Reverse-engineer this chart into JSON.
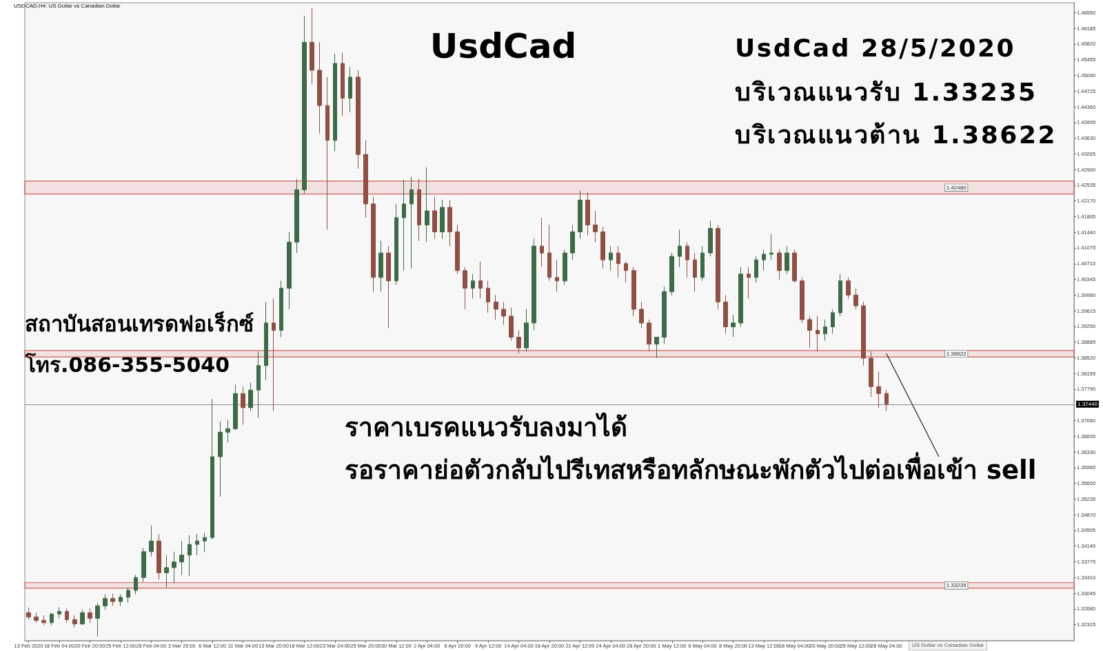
{
  "chart_data": {
    "type": "candlestick",
    "title": "UsdCad",
    "annotations": [
      "USDCAD,H4: US Dollar vs Canadian Dollar",
      "UsdCad 28/5/2020",
      "บริเวณแนวรับ 1.33235",
      "บริเวณแนวต้าน 1.38622",
      "ราคาเบรคแนวรับลงมาได้",
      {
        "text": "รอราคาย่อตัวกลับไปรีเทสหรือทลักษณะพักตัวไปต่อเพื่อเข้า sell",
        "x": "28 May 04:00",
        "y": 1.3862
      },
      "สถาบันสอนเทรดฟอเร็กซ์",
      "โทร.086-355-5040",
      "US Dollar vs Canadian Dollar"
    ],
    "categories": [
      "13 Feb 2020",
      null,
      null,
      null,
      "18 Feb 04:00",
      null,
      null,
      null,
      "20 Feb 20:00",
      null,
      null,
      null,
      "25 Feb 12:00",
      null,
      null,
      null,
      "28 Feb 04:00",
      null,
      null,
      null,
      "3 Mar 20:00",
      null,
      null,
      null,
      "6 Mar 12:00",
      null,
      null,
      null,
      "11 Mar 04:00",
      null,
      null,
      null,
      "13 Mar 20:00",
      null,
      null,
      null,
      "18 Mar 12:00",
      null,
      null,
      null,
      "23 Mar 04:00",
      null,
      null,
      null,
      "25 Mar 20:00",
      null,
      null,
      null,
      "30 Mar 12:00",
      null,
      null,
      null,
      "2 Apr 04:00",
      null,
      null,
      null,
      "6 Apr 20:00",
      null,
      null,
      null,
      "9 Apr 12:00",
      null,
      null,
      null,
      "14 Apr 04:00",
      null,
      null,
      null,
      "16 Apr 20:00",
      null,
      null,
      null,
      "21 Apr 12:00",
      null,
      null,
      null,
      "24 Apr 04:00",
      null,
      null,
      null,
      "28 Apr 20:00",
      null,
      null,
      null,
      "1 May 12:00",
      null,
      null,
      null,
      "6 May 04:00",
      null,
      null,
      null,
      "8 May 20:00",
      null,
      null,
      null,
      "13 May 12:00",
      null,
      null,
      null,
      "18 May 04:00",
      null,
      null,
      null,
      "20 May 20:00",
      null,
      null,
      null,
      "25 May 12:00",
      null,
      null,
      null,
      "28 May 04:00",
      null,
      null,
      null,
      null,
      null,
      null,
      null,
      null,
      null,
      null,
      null,
      null,
      null,
      null,
      null,
      null,
      null,
      null,
      null,
      null,
      null,
      null,
      null,
      null
    ],
    "ohlc": [
      [
        1.3259,
        1.3271,
        1.3243,
        1.3249
      ],
      [
        1.3249,
        1.3259,
        1.3236,
        1.3241
      ],
      [
        1.3241,
        1.3253,
        1.323,
        1.3236
      ],
      [
        1.3236,
        1.3259,
        1.323,
        1.3256
      ],
      [
        1.3256,
        1.3272,
        1.3246,
        1.3262
      ],
      [
        1.3262,
        1.3269,
        1.3236,
        1.3243
      ],
      [
        1.3243,
        1.3253,
        1.3225,
        1.3233
      ],
      [
        1.3233,
        1.3266,
        1.323,
        1.3259
      ],
      [
        1.3259,
        1.3269,
        1.3236,
        1.3246
      ],
      [
        1.3246,
        1.3282,
        1.3204,
        1.3275
      ],
      [
        1.3275,
        1.3302,
        1.3266,
        1.3292
      ],
      [
        1.3292,
        1.3303,
        1.3275,
        1.3285
      ],
      [
        1.3285,
        1.3302,
        1.3275,
        1.3295
      ],
      [
        1.3295,
        1.3318,
        1.3282,
        1.3311
      ],
      [
        1.3311,
        1.3347,
        1.3302,
        1.3341
      ],
      [
        1.3341,
        1.341,
        1.3331,
        1.3401
      ],
      [
        1.3401,
        1.3462,
        1.339,
        1.3426
      ],
      [
        1.3426,
        1.3442,
        1.3336,
        1.3352
      ],
      [
        1.3352,
        1.3393,
        1.3318,
        1.3364
      ],
      [
        1.3364,
        1.3401,
        1.3328,
        1.3377
      ],
      [
        1.3377,
        1.3426,
        1.3347,
        1.3393
      ],
      [
        1.3393,
        1.3439,
        1.3344,
        1.3418
      ],
      [
        1.3418,
        1.3442,
        1.3393,
        1.3426
      ],
      [
        1.3426,
        1.3445,
        1.34,
        1.3434
      ],
      [
        1.3434,
        1.3756,
        1.3429,
        1.3622
      ],
      [
        1.3622,
        1.3704,
        1.3529,
        1.3679
      ],
      [
        1.3679,
        1.3707,
        1.3655,
        1.3687
      ],
      [
        1.3687,
        1.3789,
        1.3684,
        1.3769
      ],
      [
        1.3769,
        1.3785,
        1.3696,
        1.3736
      ],
      [
        1.3736,
        1.3794,
        1.3728,
        1.3777
      ],
      [
        1.3777,
        1.3867,
        1.3712,
        1.3834
      ],
      [
        1.3834,
        1.3982,
        1.38,
        1.3933
      ],
      [
        1.3933,
        1.399,
        1.3728,
        1.3916
      ],
      [
        1.3916,
        1.4031,
        1.39,
        1.4014
      ],
      [
        1.4014,
        1.4145,
        1.3965,
        1.4121
      ],
      [
        1.4121,
        1.4268,
        1.4096,
        1.4243
      ],
      [
        1.4243,
        1.4647,
        1.4235,
        1.4586
      ],
      [
        1.4586,
        1.4666,
        1.4488,
        1.4521
      ],
      [
        1.4521,
        1.4586,
        1.4374,
        1.4439
      ],
      [
        1.4439,
        1.4505,
        1.415,
        1.4358
      ],
      [
        1.4358,
        1.4559,
        1.4333,
        1.4537
      ],
      [
        1.4537,
        1.4562,
        1.4415,
        1.4456
      ],
      [
        1.4456,
        1.4529,
        1.4423,
        1.4505
      ],
      [
        1.4505,
        1.4521,
        1.4292,
        1.4325
      ],
      [
        1.4325,
        1.4358,
        1.4178,
        1.421
      ],
      [
        1.421,
        1.4227,
        1.4006,
        1.4039
      ],
      [
        1.4039,
        1.4124,
        1.4006,
        1.4096
      ],
      [
        1.4096,
        1.4112,
        1.3921,
        1.4031
      ],
      [
        1.4031,
        1.421,
        1.4022,
        1.4178
      ],
      [
        1.4178,
        1.4266,
        1.4055,
        1.421
      ],
      [
        1.421,
        1.4273,
        1.406,
        1.4243
      ],
      [
        1.4243,
        1.4268,
        1.4124,
        1.4161
      ],
      [
        1.4161,
        1.4295,
        1.4121,
        1.4194
      ],
      [
        1.4194,
        1.4227,
        1.4129,
        1.4145
      ],
      [
        1.4145,
        1.422,
        1.4129,
        1.4202
      ],
      [
        1.4202,
        1.4219,
        1.4112,
        1.4145
      ],
      [
        1.4145,
        1.4161,
        1.4047,
        1.4055
      ],
      [
        1.4055,
        1.4063,
        1.3965,
        1.4014
      ],
      [
        1.4014,
        1.4047,
        1.399,
        1.4031
      ],
      [
        1.4031,
        1.4076,
        1.399,
        1.4014
      ],
      [
        1.4014,
        1.4031,
        1.3957,
        1.3982
      ],
      [
        1.3982,
        1.3998,
        1.3941,
        1.3965
      ],
      [
        1.3965,
        1.3982,
        1.3929,
        1.3949
      ],
      [
        1.3949,
        1.3969,
        1.3892,
        1.39
      ],
      [
        1.39,
        1.3916,
        1.3862,
        1.3875
      ],
      [
        1.3875,
        1.3965,
        1.3867,
        1.3933
      ],
      [
        1.3933,
        1.4129,
        1.3916,
        1.4112
      ],
      [
        1.4112,
        1.4178,
        1.4063,
        1.4096
      ],
      [
        1.4096,
        1.4161,
        1.4031,
        1.4039
      ],
      [
        1.4039,
        1.408,
        1.4006,
        1.4031
      ],
      [
        1.4031,
        1.4103,
        1.4022,
        1.4096
      ],
      [
        1.4096,
        1.4161,
        1.408,
        1.4145
      ],
      [
        1.4145,
        1.4241,
        1.4129,
        1.4219
      ],
      [
        1.4219,
        1.4237,
        1.4137,
        1.4161
      ],
      [
        1.4161,
        1.4194,
        1.4121,
        1.4145
      ],
      [
        1.4145,
        1.4156,
        1.406,
        1.408
      ],
      [
        1.408,
        1.4112,
        1.4055,
        1.4096
      ],
      [
        1.4096,
        1.4112,
        1.4039,
        1.4071
      ],
      [
        1.4071,
        1.4076,
        1.4027,
        1.4055
      ],
      [
        1.4055,
        1.4063,
        1.3949,
        1.3965
      ],
      [
        1.3965,
        1.3982,
        1.3921,
        1.3933
      ],
      [
        1.3933,
        1.3941,
        1.3867,
        1.3884
      ],
      [
        1.3884,
        1.39,
        1.3851,
        1.39
      ],
      [
        1.39,
        1.4018,
        1.3884,
        1.4006
      ],
      [
        1.4006,
        1.4096,
        1.3998,
        1.4088
      ],
      [
        1.4088,
        1.415,
        1.4063,
        1.4112
      ],
      [
        1.4112,
        1.4121,
        1.4039,
        1.408
      ],
      [
        1.408,
        1.4096,
        1.4006,
        1.4039
      ],
      [
        1.4039,
        1.4112,
        1.4031,
        1.4096
      ],
      [
        1.4096,
        1.4171,
        1.4088,
        1.4153
      ],
      [
        1.4153,
        1.4161,
        1.3965,
        1.3982
      ],
      [
        1.3982,
        1.3998,
        1.3908,
        1.3924
      ],
      [
        1.3924,
        1.3952,
        1.39,
        1.3933
      ],
      [
        1.3933,
        1.4063,
        1.3924,
        1.4047
      ],
      [
        1.4047,
        1.4063,
        1.399,
        1.4039
      ],
      [
        1.4039,
        1.4088,
        1.4027,
        1.408
      ],
      [
        1.408,
        1.4104,
        1.4055,
        1.4093
      ],
      [
        1.4093,
        1.414,
        1.408,
        1.4096
      ],
      [
        1.4096,
        1.4104,
        1.4034,
        1.4055
      ],
      [
        1.4055,
        1.4112,
        1.4047,
        1.4096
      ],
      [
        1.4096,
        1.4104,
        1.4027,
        1.4031
      ],
      [
        1.4031,
        1.4039,
        1.3933,
        1.3941
      ],
      [
        1.3941,
        1.3949,
        1.3875,
        1.3916
      ],
      [
        1.3916,
        1.3949,
        1.3867,
        1.3908
      ],
      [
        1.3908,
        1.3941,
        1.3892,
        1.3924
      ],
      [
        1.3924,
        1.3965,
        1.3908,
        1.3957
      ],
      [
        1.3957,
        1.4047,
        1.3949,
        1.4031
      ],
      [
        1.4031,
        1.4039,
        1.399,
        1.3998
      ],
      [
        1.3998,
        1.4014,
        1.3965,
        1.3973
      ],
      [
        1.3973,
        1.3982,
        1.3834,
        1.3851
      ],
      [
        1.3851,
        1.3867,
        1.3761,
        1.3785
      ],
      [
        1.3785,
        1.382,
        1.3736,
        1.3769
      ],
      [
        1.3769,
        1.3777,
        1.3728,
        1.3744
      ],
      null,
      null,
      null,
      null,
      null,
      null,
      null,
      null,
      null,
      null,
      null,
      null,
      null,
      null,
      null,
      null,
      null,
      null,
      null,
      null,
      null,
      null,
      null,
      null
    ],
    "ylim": [
      1.3194,
      1.4678
    ],
    "yticks": [
      1.32315,
      {
        "value": 1.3268,
        "label": "1.32680"
      },
      1.33045,
      {
        "value": 1.3341,
        "label": "1.33410"
      },
      1.33775,
      {
        "value": 1.3414,
        "label": "1.34140"
      },
      1.34505,
      {
        "value": 1.3487,
        "label": "1.34870"
      },
      1.35235,
      {
        "value": 1.356,
        "label": "1.35600"
      },
      1.35965,
      {
        "value": 1.3633,
        "label": "1.36330"
      },
      1.36695,
      {
        "value": 1.3706,
        "label": "1.37060"
      },
      {
        "value": 1.3779,
        "label": "1.37790"
      },
      1.38155,
      {
        "value": 1.3852,
        "label": "1.38520"
      },
      1.38885,
      {
        "value": 1.3925,
        "label": "1.39250"
      },
      1.39615,
      {
        "value": 1.3998,
        "label": "1.39980"
      },
      1.40345,
      {
        "value": 1.4071,
        "label": "1.40710"
      },
      1.41075,
      {
        "value": 1.4144,
        "label": "1.41440"
      },
      1.41805,
      {
        "value": 1.4217,
        "label": "1.42170"
      },
      1.42535,
      {
        "value": 1.429,
        "label": "1.42900"
      },
      1.43265,
      {
        "value": 1.4363,
        "label": "1.43630"
      },
      1.43995,
      {
        "value": 1.4436,
        "label": "1.44360"
      },
      1.44725,
      {
        "value": 1.4509,
        "label": "1.45090"
      },
      1.45455,
      {
        "value": 1.4582,
        "label": "1.45820"
      },
      1.46185,
      {
        "value": 1.4655,
        "label": "1.46550"
      }
    ],
    "ref_lines": [
      {
        "axis": "y",
        "value": 1.3744,
        "label": "1.37440",
        "color": "#8c8c8c"
      }
    ],
    "bands": [
      {
        "axis": "y",
        "from": 1.4233,
        "to": 1.4263,
        "label": "1.42480",
        "color": "#d0605a"
      },
      {
        "axis": "y",
        "from": 1.3854,
        "to": 1.3869,
        "label": "1.38622",
        "color": "#d0605a"
      },
      {
        "axis": "y",
        "from": 1.3316,
        "to": 1.3329,
        "label": "1.33235",
        "color": "#d0605a"
      }
    ]
  }
}
